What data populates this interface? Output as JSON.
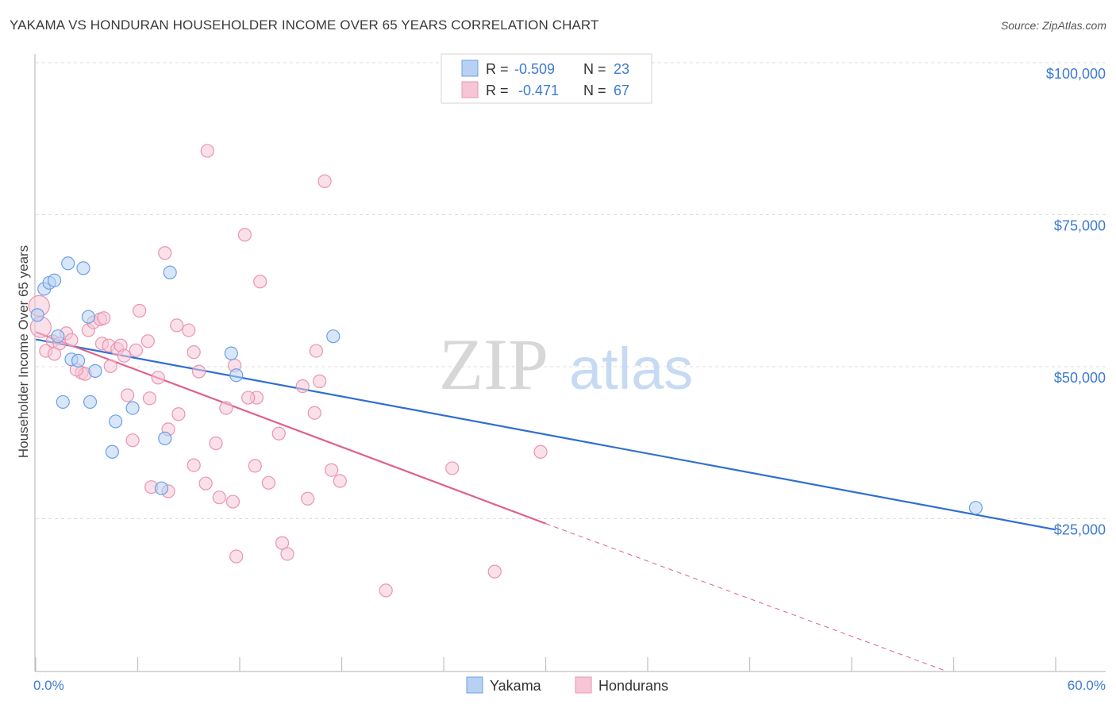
{
  "title": "YAKAMA VS HONDURAN HOUSEHOLDER INCOME OVER 65 YEARS CORRELATION CHART",
  "source": "Source: ZipAtlas.com",
  "watermark": {
    "zip": "ZIP",
    "atlas": "atlas"
  },
  "chart_data": {
    "type": "scatter",
    "title": "YAKAMA VS HONDURAN HOUSEHOLDER INCOME OVER 65 YEARS CORRELATION CHART",
    "xlabel": "",
    "ylabel": "Householder Income Over 65 years",
    "xlim": [
      0,
      60
    ],
    "ylim": [
      0,
      103000
    ],
    "x_tick_labels": {
      "min": "0.0%",
      "max": "60.0%"
    },
    "y_ticks": [
      {
        "value": 100000,
        "label": "$100,000"
      },
      {
        "value": 75000,
        "label": "$75,000"
      },
      {
        "value": 50000,
        "label": "$50,000"
      },
      {
        "value": 25000,
        "label": "$25,000"
      }
    ],
    "legend": [
      {
        "r_label": "R =",
        "r_value": "-0.509",
        "n_label": "N =",
        "n_value": "23"
      },
      {
        "r_label": "R =",
        "r_value": "-0.471",
        "n_label": "N =",
        "n_value": "67"
      }
    ],
    "series": [
      {
        "name": "Yakama",
        "color": "#6aa0e8",
        "fill": "#b8d1f3",
        "line_color": "#2f6fd0",
        "trend": {
          "x0": 0,
          "y0": 54500,
          "x1": 60,
          "y1": 23200
        },
        "points": [
          {
            "x": 0.1,
            "y": 58500
          },
          {
            "x": 0.5,
            "y": 62800
          },
          {
            "x": 0.8,
            "y": 63800
          },
          {
            "x": 1.1,
            "y": 64200
          },
          {
            "x": 1.9,
            "y": 67000
          },
          {
            "x": 2.8,
            "y": 66200
          },
          {
            "x": 3.1,
            "y": 58200
          },
          {
            "x": 1.3,
            "y": 55000
          },
          {
            "x": 2.1,
            "y": 51200
          },
          {
            "x": 2.5,
            "y": 51000
          },
          {
            "x": 3.5,
            "y": 49300
          },
          {
            "x": 1.6,
            "y": 44200
          },
          {
            "x": 3.2,
            "y": 44200
          },
          {
            "x": 4.7,
            "y": 41000
          },
          {
            "x": 5.7,
            "y": 43200
          },
          {
            "x": 7.9,
            "y": 65500
          },
          {
            "x": 7.6,
            "y": 38200
          },
          {
            "x": 4.5,
            "y": 36000
          },
          {
            "x": 7.4,
            "y": 30000
          },
          {
            "x": 11.5,
            "y": 52200
          },
          {
            "x": 11.8,
            "y": 48600
          },
          {
            "x": 17.5,
            "y": 55000
          },
          {
            "x": 55.3,
            "y": 26800
          }
        ]
      },
      {
        "name": "Hondurans",
        "color": "#e995b0",
        "fill": "#f6c6d6",
        "line_color": "#e0608c",
        "trend": {
          "x0": 0,
          "y0": 55700,
          "x1": 30,
          "y1": 24200
        },
        "trend_dashed": {
          "x0": 30,
          "y0": 24200,
          "x1": 53.5,
          "y1": 0
        },
        "points": [
          {
            "x": 0.2,
            "y": 60000
          },
          {
            "x": 0.3,
            "y": 56500
          },
          {
            "x": 0.6,
            "y": 52600
          },
          {
            "x": 1.0,
            "y": 54200
          },
          {
            "x": 1.4,
            "y": 53800
          },
          {
            "x": 1.8,
            "y": 55500
          },
          {
            "x": 2.1,
            "y": 54400
          },
          {
            "x": 2.7,
            "y": 49000
          },
          {
            "x": 2.9,
            "y": 48800
          },
          {
            "x": 3.1,
            "y": 56000
          },
          {
            "x": 3.4,
            "y": 57300
          },
          {
            "x": 3.8,
            "y": 57800
          },
          {
            "x": 3.9,
            "y": 53800
          },
          {
            "x": 4.3,
            "y": 53500
          },
          {
            "x": 4.4,
            "y": 50100
          },
          {
            "x": 4.8,
            "y": 52900
          },
          {
            "x": 5.0,
            "y": 53500
          },
          {
            "x": 5.2,
            "y": 51800
          },
          {
            "x": 5.9,
            "y": 52700
          },
          {
            "x": 6.1,
            "y": 59200
          },
          {
            "x": 6.6,
            "y": 54200
          },
          {
            "x": 5.4,
            "y": 45300
          },
          {
            "x": 6.7,
            "y": 44800
          },
          {
            "x": 7.2,
            "y": 48200
          },
          {
            "x": 7.6,
            "y": 68700
          },
          {
            "x": 8.3,
            "y": 56800
          },
          {
            "x": 9.0,
            "y": 56000
          },
          {
            "x": 9.6,
            "y": 49200
          },
          {
            "x": 10.1,
            "y": 85500
          },
          {
            "x": 8.4,
            "y": 42200
          },
          {
            "x": 7.8,
            "y": 39700
          },
          {
            "x": 10.6,
            "y": 37400
          },
          {
            "x": 11.2,
            "y": 43200
          },
          {
            "x": 11.7,
            "y": 50200
          },
          {
            "x": 5.7,
            "y": 37900
          },
          {
            "x": 6.8,
            "y": 30200
          },
          {
            "x": 7.8,
            "y": 29500
          },
          {
            "x": 9.3,
            "y": 33800
          },
          {
            "x": 10.0,
            "y": 30800
          },
          {
            "x": 10.8,
            "y": 28500
          },
          {
            "x": 11.6,
            "y": 27800
          },
          {
            "x": 12.3,
            "y": 71700
          },
          {
            "x": 13.0,
            "y": 44900
          },
          {
            "x": 12.5,
            "y": 44900
          },
          {
            "x": 13.2,
            "y": 64000
          },
          {
            "x": 13.7,
            "y": 30900
          },
          {
            "x": 14.3,
            "y": 39000
          },
          {
            "x": 12.9,
            "y": 33700
          },
          {
            "x": 14.5,
            "y": 21000
          },
          {
            "x": 14.8,
            "y": 19200
          },
          {
            "x": 11.8,
            "y": 18800
          },
          {
            "x": 15.7,
            "y": 46800
          },
          {
            "x": 16.4,
            "y": 42400
          },
          {
            "x": 16.0,
            "y": 28300
          },
          {
            "x": 17.0,
            "y": 80500
          },
          {
            "x": 16.5,
            "y": 52600
          },
          {
            "x": 16.7,
            "y": 47600
          },
          {
            "x": 17.4,
            "y": 33000
          },
          {
            "x": 17.9,
            "y": 31200
          },
          {
            "x": 24.5,
            "y": 33300
          },
          {
            "x": 20.6,
            "y": 13200
          },
          {
            "x": 27.0,
            "y": 16300
          },
          {
            "x": 29.7,
            "y": 36000
          },
          {
            "x": 4.0,
            "y": 58000
          },
          {
            "x": 2.4,
            "y": 49500
          },
          {
            "x": 9.3,
            "y": 52400
          },
          {
            "x": 1.1,
            "y": 52100
          }
        ]
      }
    ]
  }
}
